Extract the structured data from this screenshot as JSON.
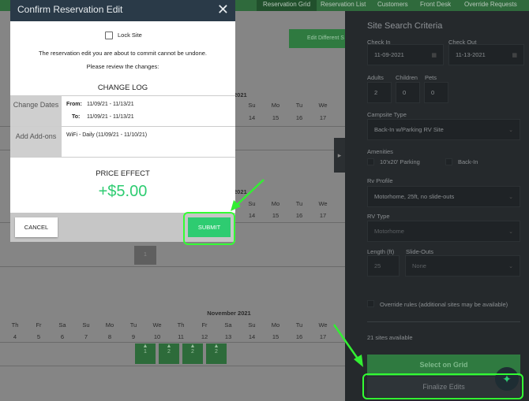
{
  "nav": {
    "tabs": [
      "Reservation Grid",
      "Reservation List",
      "Customers",
      "Front Desk",
      "Override Requests"
    ],
    "active": 0
  },
  "background": {
    "edit_different_site": "Edit Different S",
    "year_label": "2021",
    "month_label": "November 2021",
    "partial_days": [
      {
        "d": "Su",
        "n": "14"
      },
      {
        "d": "Mo",
        "n": "15"
      },
      {
        "d": "Tu",
        "n": "16"
      },
      {
        "d": "We",
        "n": "17"
      }
    ],
    "days": [
      {
        "d": "Th",
        "n": "4"
      },
      {
        "d": "Fr",
        "n": "5"
      },
      {
        "d": "Sa",
        "n": "6"
      },
      {
        "d": "Su",
        "n": "7"
      },
      {
        "d": "Mo",
        "n": "8"
      },
      {
        "d": "Tu",
        "n": "9"
      },
      {
        "d": "We",
        "n": "10"
      },
      {
        "d": "Th",
        "n": "11"
      },
      {
        "d": "Fr",
        "n": "12"
      },
      {
        "d": "Sa",
        "n": "13"
      },
      {
        "d": "Su",
        "n": "14"
      },
      {
        "d": "Mo",
        "n": "15"
      },
      {
        "d": "Tu",
        "n": "16"
      },
      {
        "d": "We",
        "n": "17"
      }
    ],
    "site_cell": "1",
    "booking_cells": [
      "1",
      "2",
      "2",
      "2"
    ]
  },
  "modal": {
    "title": "Confirm Reservation Edit",
    "lock_site": "Lock Site",
    "lock_checked": false,
    "warning": "The reservation edit you are about to commit cannot be undone.",
    "review": "Please review the changes:",
    "change_log_title": "CHANGE LOG",
    "change_dates_label": "Change Dates",
    "from_label": "From:",
    "from_value": "11/09/21 - 11/13/21",
    "to_label": "To:",
    "to_value": "11/09/21 - 11/13/21",
    "addons_label": "Add Add-ons",
    "addons_value": "WiFi - Daily (11/09/21 - 11/10/21)",
    "price_effect_title": "PRICE EFFECT",
    "price_effect": "+$5.00",
    "cancel": "CANCEL",
    "submit": "SUBMIT"
  },
  "panel": {
    "title": "Site Search Criteria",
    "check_in_label": "Check In",
    "check_in": "11-09-2021",
    "check_out_label": "Check Out",
    "check_out": "11-13-2021",
    "adults_label": "Adults",
    "adults": "2",
    "children_label": "Children",
    "children": "0",
    "pets_label": "Pets",
    "pets": "0",
    "campsite_type_label": "Campsite Type",
    "campsite_type": "Back-In w/Parking RV Site",
    "amenities_label": "Amenities",
    "amenities": [
      "10'x20' Parking",
      "Back-In"
    ],
    "rv_profile_label": "Rv Profile",
    "rv_profile": "Motorhome, 25ft, no slide-outs",
    "rv_type_label": "RV Type",
    "rv_type": "Motorhome",
    "length_label": "Length (ft)",
    "length": "25",
    "slideouts_label": "Slide-Outs",
    "slideouts": "None",
    "override": "Override rules (additional sites may be available)",
    "sites_available": "21 sites available",
    "select_on_grid": "Select on Grid",
    "finalize_edits": "Finalize Edits"
  },
  "colors": {
    "accent": "#2ecc71",
    "highlight": "#33ff33",
    "header": "#2a3a48"
  }
}
